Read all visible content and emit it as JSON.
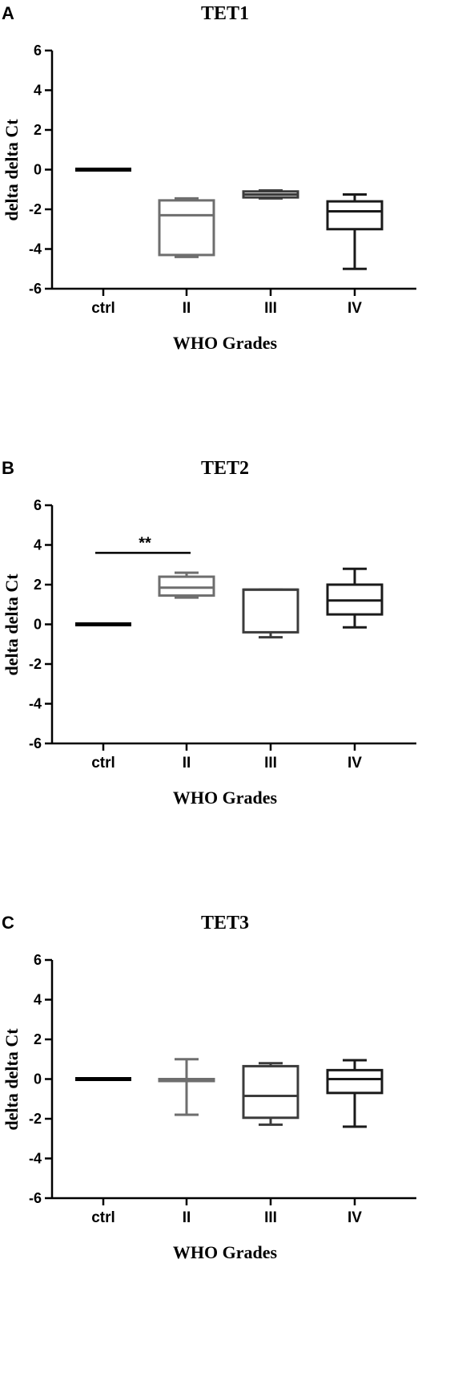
{
  "chart_data": [
    {
      "panel": "A",
      "type": "box",
      "title": "TET1",
      "xlabel": "WHO Grades",
      "ylabel": "delta delta Ct",
      "ylim": [
        -6,
        6
      ],
      "yticks": [
        "6",
        "4",
        "2",
        "0",
        "-2",
        "-4",
        "-6"
      ],
      "categories": [
        "ctrl",
        "II",
        "III",
        "IV"
      ],
      "colors": [
        "#000000",
        "#6e6e6e",
        "#3c3c3c",
        "#1a1a1a"
      ],
      "boxes": [
        {
          "min": 0,
          "q1": 0,
          "median": 0,
          "q3": 0,
          "max": 0
        },
        {
          "min": -4.4,
          "q1": -4.3,
          "median": -2.3,
          "q3": -1.55,
          "max": -1.45
        },
        {
          "min": -1.45,
          "q1": -1.4,
          "median": -1.25,
          "q3": -1.1,
          "max": -1.05
        },
        {
          "min": -5.0,
          "q1": -3.0,
          "median": -2.1,
          "q3": -1.6,
          "max": -1.25
        }
      ],
      "significance": []
    },
    {
      "panel": "B",
      "type": "box",
      "title": "TET2",
      "xlabel": "WHO Grades",
      "ylabel": "delta delta Ct",
      "ylim": [
        -6,
        6
      ],
      "yticks": [
        "6",
        "4",
        "2",
        "0",
        "-2",
        "-4",
        "-6"
      ],
      "categories": [
        "ctrl",
        "II",
        "III",
        "IV"
      ],
      "colors": [
        "#000000",
        "#6e6e6e",
        "#3c3c3c",
        "#1a1a1a"
      ],
      "boxes": [
        {
          "min": 0,
          "q1": 0,
          "median": 0,
          "q3": 0,
          "max": 0
        },
        {
          "min": 1.35,
          "q1": 1.45,
          "median": 1.85,
          "q3": 2.4,
          "max": 2.6
        },
        {
          "min": -0.65,
          "q1": -0.4,
          "median": 1.75,
          "q3": 1.75,
          "max": 1.75
        },
        {
          "min": -0.15,
          "q1": 0.5,
          "median": 1.2,
          "q3": 2.0,
          "max": 2.8
        }
      ],
      "significance": [
        {
          "from": 0,
          "to": 1,
          "y": 3.6,
          "label": "**"
        }
      ]
    },
    {
      "panel": "C",
      "type": "box",
      "title": "TET3",
      "xlabel": "WHO Grades",
      "ylabel": "delta delta Ct",
      "ylim": [
        -6,
        6
      ],
      "yticks": [
        "6",
        "4",
        "2",
        "0",
        "-2",
        "-4",
        "-6"
      ],
      "categories": [
        "ctrl",
        "II",
        "III",
        "IV"
      ],
      "colors": [
        "#000000",
        "#6e6e6e",
        "#3c3c3c",
        "#1a1a1a"
      ],
      "boxes": [
        {
          "min": 0,
          "q1": 0,
          "median": 0,
          "q3": 0,
          "max": 0
        },
        {
          "min": -1.8,
          "q1": -0.1,
          "median": -0.05,
          "q3": 0.0,
          "max": 1.0
        },
        {
          "min": -2.3,
          "q1": -1.95,
          "median": -0.85,
          "q3": 0.65,
          "max": 0.8
        },
        {
          "min": -2.4,
          "q1": -0.7,
          "median": 0.0,
          "q3": 0.45,
          "max": 0.95
        }
      ],
      "significance": []
    }
  ]
}
